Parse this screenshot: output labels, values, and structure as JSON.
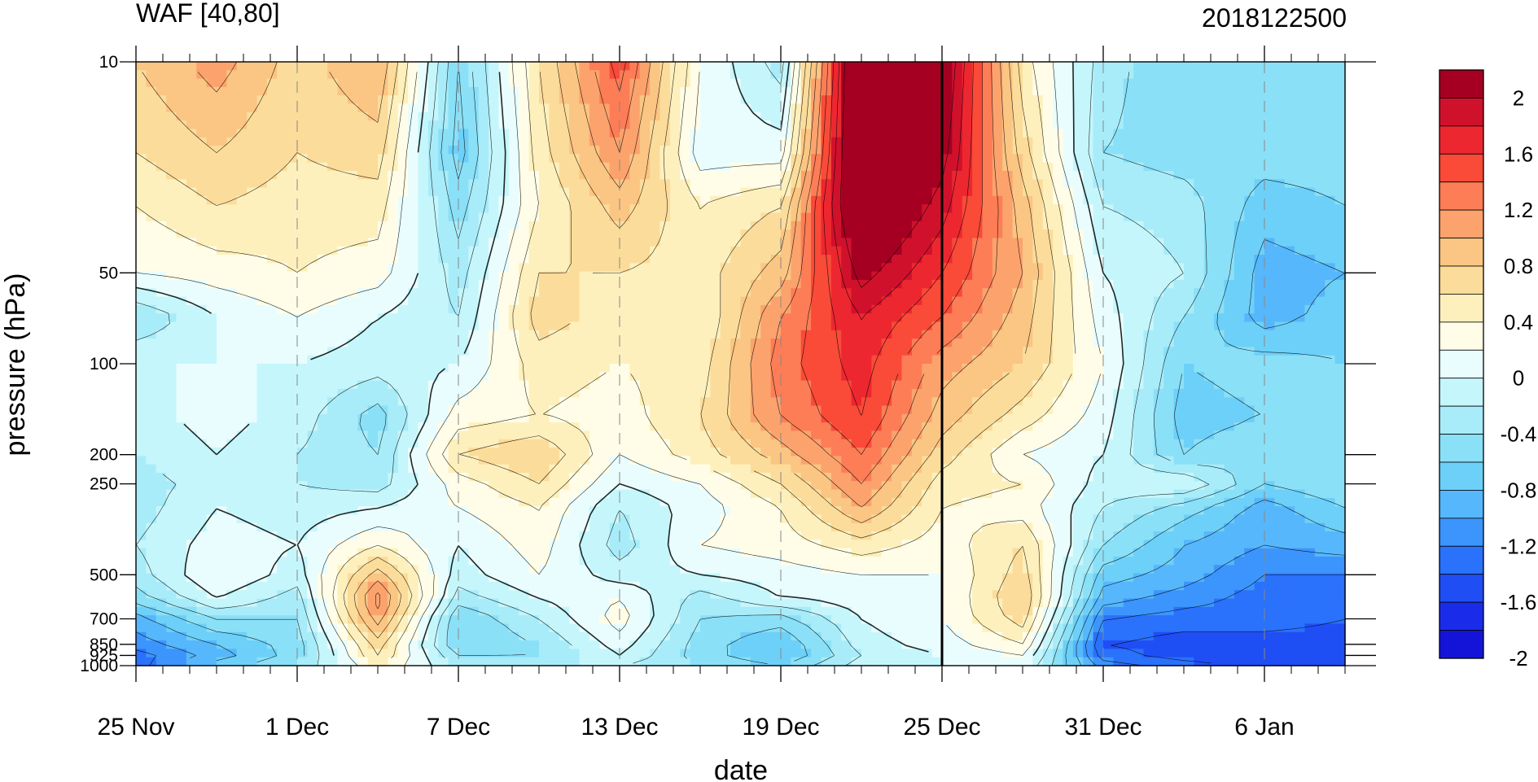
{
  "chart_data": {
    "type": "heatmap",
    "title": "WAF [40,80]",
    "subtitle": "2018122500",
    "xlabel": "date",
    "ylabel": "pressure (hPa)",
    "x_tick_labels": [
      "25 Nov",
      "1 Dec",
      "7 Dec",
      "13 Dec",
      "19 Dec",
      "25 Dec",
      "31 Dec",
      "6 Jan"
    ],
    "x_tick_days": [
      0,
      6,
      12,
      18,
      24,
      30,
      36,
      42
    ],
    "x_range_days": [
      0,
      45
    ],
    "y_tick_labels": [
      "10",
      "50",
      "100",
      "200",
      "250",
      "500",
      "700",
      "850",
      "925",
      "1000"
    ],
    "y_ticks_hPa": [
      10,
      50,
      100,
      200,
      250,
      500,
      700,
      850,
      925,
      1000
    ],
    "y_scale": "log",
    "y_range_hPa": [
      10,
      1000
    ],
    "current_date_day": 30,
    "colorbar": {
      "labels": [
        "2",
        "1.6",
        "1.2",
        "0.8",
        "0.4",
        "0",
        "-0.4",
        "-0.8",
        "-1.2",
        "-1.6",
        "-2"
      ],
      "levels": [
        2.2,
        2.0,
        1.8,
        1.6,
        1.4,
        1.2,
        1.0,
        0.8,
        0.6,
        0.4,
        0.2,
        0.0,
        -0.2,
        -0.4,
        -0.6,
        -0.8,
        -1.0,
        -1.2,
        -1.4,
        -1.6,
        -1.8,
        -2.0,
        -2.2
      ],
      "colors": [
        "#a50021",
        "#d0112c",
        "#ed2730",
        "#fa4a38",
        "#fd7d56",
        "#fca36d",
        "#fbc583",
        "#fcdc9a",
        "#fef0bc",
        "#fffde7",
        "#e9fdfe",
        "#c5f6fb",
        "#a8ecf9",
        "#8ae0f7",
        "#6dd0f8",
        "#56b7fc",
        "#3c95fd",
        "#2a71fb",
        "#1f4ef5",
        "#1a2cea",
        "#1414d8"
      ]
    },
    "grid_days": [
      0,
      3,
      6,
      9,
      12,
      15,
      18,
      21,
      24,
      27,
      30,
      33,
      36,
      39,
      42,
      45
    ],
    "grid_levels_hPa": [
      10,
      20,
      30,
      50,
      70,
      100,
      150,
      200,
      250,
      300,
      400,
      500,
      600,
      700,
      850,
      925,
      1000
    ],
    "grid_values": [
      [
        0.8,
        0.6,
        0.4,
        0.2,
        -0.4,
        0.0,
        -0.1,
        -0.2,
        -0.3,
        -0.3,
        -0.2,
        -0.3,
        -0.5,
        -0.9,
        -1.1,
        -1.3,
        -1.3
      ],
      [
        1.1,
        0.8,
        0.6,
        0.3,
        0.0,
        0.0,
        0.1,
        0.0,
        -0.1,
        0.0,
        0.1,
        0.2,
        0.0,
        -0.4,
        -0.8,
        -0.9,
        -0.7
      ],
      [
        0.7,
        0.6,
        0.5,
        0.4,
        0.2,
        0.0,
        -0.1,
        -0.2,
        -0.2,
        -0.1,
        0.0,
        -0.1,
        -0.3,
        -0.4,
        -0.5,
        -0.5,
        -0.4
      ],
      [
        1.0,
        0.7,
        0.5,
        0.3,
        0.0,
        -0.1,
        -0.5,
        -0.4,
        -0.3,
        0.0,
        0.4,
        0.9,
        1.3,
        1.1,
        0.7,
        0.6,
        0.4
      ],
      [
        -0.6,
        -0.7,
        -0.5,
        -0.3,
        -0.2,
        0.0,
        0.3,
        0.6,
        0.3,
        0.2,
        0.0,
        -0.1,
        -0.3,
        -0.6,
        -0.6,
        -0.4,
        -0.2
      ],
      [
        0.6,
        0.5,
        0.4,
        0.6,
        0.7,
        0.5,
        0.4,
        0.8,
        0.6,
        0.4,
        0.3,
        0.2,
        0.0,
        -0.2,
        -0.4,
        -0.4,
        -0.2
      ],
      [
        1.5,
        1.2,
        0.9,
        0.6,
        0.5,
        0.4,
        0.3,
        0.2,
        0.0,
        -0.2,
        -0.3,
        -0.1,
        0.2,
        0.3,
        0.1,
        0.0,
        -0.2
      ],
      [
        0.2,
        0.1,
        0.4,
        0.5,
        0.4,
        0.5,
        0.6,
        0.5,
        0.2,
        0.1,
        0.2,
        0.0,
        -0.3,
        -0.4,
        -0.5,
        -0.5,
        -0.4
      ],
      [
        -0.3,
        0.1,
        0.6,
        0.9,
        1.2,
        1.3,
        1.2,
        0.9,
        0.6,
        0.4,
        0.3,
        0.1,
        0.0,
        -0.5,
        -0.8,
        -0.8,
        -0.6
      ],
      [
        2.6,
        2.6,
        2.5,
        2.1,
        1.8,
        1.7,
        1.6,
        1.4,
        1.2,
        1.0,
        0.5,
        0.2,
        0.1,
        0.0,
        -0.1,
        -0.2,
        -0.1
      ],
      [
        2.3,
        2.1,
        1.9,
        1.6,
        1.4,
        1.1,
        0.9,
        0.7,
        0.5,
        0.4,
        0.3,
        0.2,
        0.2,
        0.2,
        0.1,
        0.0,
        0.0
      ],
      [
        0.5,
        0.7,
        0.9,
        1.0,
        0.9,
        0.8,
        0.5,
        0.2,
        0.4,
        0.3,
        0.6,
        0.7,
        0.8,
        0.7,
        0.4,
        0.2,
        0.0
      ],
      [
        -0.3,
        -0.4,
        -0.2,
        0.0,
        0.1,
        0.2,
        0.1,
        0.0,
        -0.1,
        -0.2,
        -0.4,
        -0.7,
        -0.9,
        -1.2,
        -1.4,
        -1.3,
        -1.1
      ],
      [
        -0.6,
        -0.5,
        -0.3,
        -0.2,
        -0.4,
        -0.6,
        -0.7,
        -0.6,
        0.0,
        -0.5,
        -0.8,
        -0.9,
        -1.1,
        -1.3,
        -1.5,
        -1.5,
        -1.3
      ],
      [
        -0.4,
        -0.5,
        -0.7,
        -0.9,
        -0.9,
        -0.5,
        -0.6,
        -0.4,
        -0.6,
        -0.9,
        -1.0,
        -1.2,
        -1.3,
        -1.3,
        -1.5,
        -1.5,
        -1.5
      ],
      [
        -0.4,
        -0.5,
        -0.6,
        -0.8,
        -0.7,
        -0.6,
        -0.5,
        -0.4,
        -0.4,
        -0.6,
        -0.9,
        -1.2,
        -1.3,
        -1.4,
        -1.5,
        -1.6,
        -1.6
      ]
    ]
  }
}
